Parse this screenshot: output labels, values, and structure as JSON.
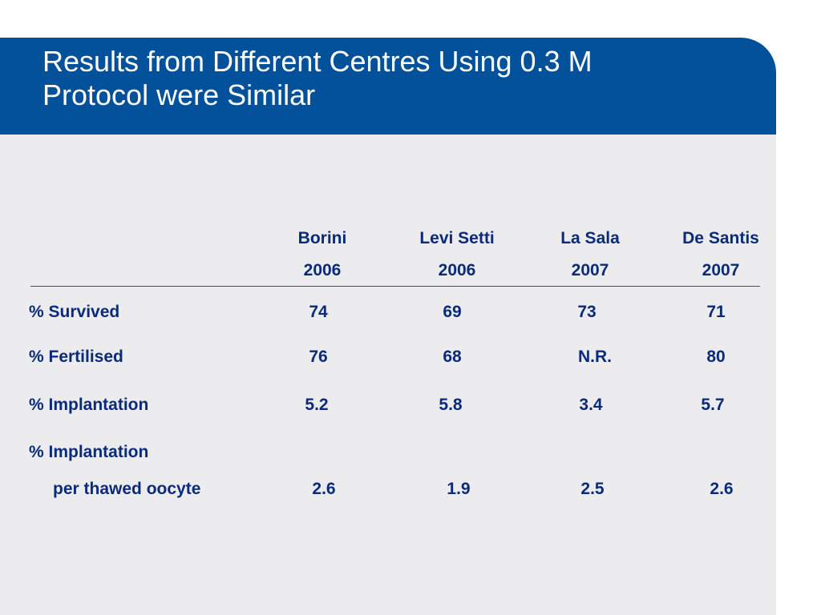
{
  "slide": {
    "title_line1": "Results from Different Centres Using 0.3 M",
    "title_line2": "Protocol were Similar",
    "header_color": "#03519b",
    "body_color": "#ececef",
    "text_color": "#0a2a7a"
  },
  "table": {
    "columns": [
      {
        "name": "Borini",
        "year": "2006"
      },
      {
        "name": "Levi Setti",
        "year": "2006"
      },
      {
        "name": "La Sala",
        "year": "2007"
      },
      {
        "name": "De Santis",
        "year": "2007"
      }
    ],
    "rows": [
      {
        "label": "% Survived",
        "values": [
          "74",
          "69",
          "73",
          "71"
        ]
      },
      {
        "label": "% Fertilised",
        "values": [
          "76",
          "68",
          "N.R.",
          "80"
        ]
      },
      {
        "label": "% Implantation",
        "values": [
          "5.2",
          "5.8",
          "3.4",
          "5.7"
        ]
      },
      {
        "label": "% Implantation",
        "sublabel": "per thawed oocyte",
        "values": [
          "2.6",
          "1.9",
          "2.5",
          "2.6"
        ]
      }
    ]
  }
}
